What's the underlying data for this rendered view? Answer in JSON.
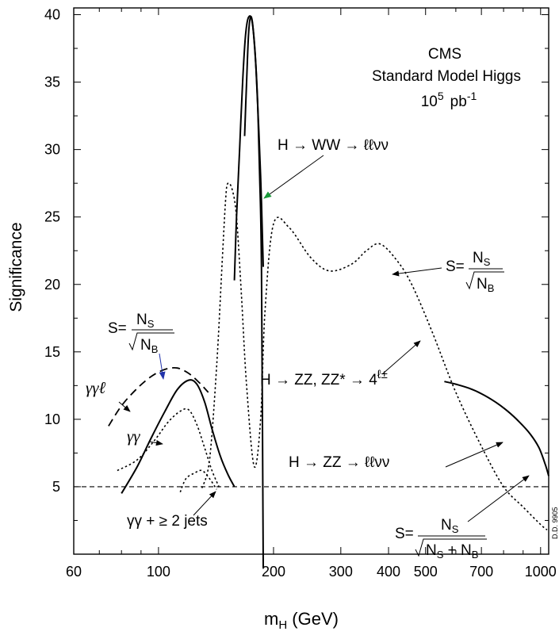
{
  "chart_data": {
    "type": "line",
    "xlabel": {
      "main": "m",
      "sub": "H",
      "rest": " (GeV)"
    },
    "ylabel": "Significance",
    "x_scale": "log",
    "xlim": [
      60,
      1050
    ],
    "ylim": [
      0,
      40.5
    ],
    "x_ticks": [
      60,
      100,
      200,
      300,
      400,
      500,
      700,
      1000
    ],
    "y_ticks": [
      5,
      10,
      15,
      20,
      25,
      30,
      35,
      40
    ],
    "title_lines": [
      "CMS",
      "Standard Model Higgs"
    ],
    "lumi": {
      "base": "10",
      "exp": "5",
      "unit": "pb",
      "unit_exp": "-1"
    },
    "threshold": 5,
    "side_tag": "D.D. 9905",
    "annotations": {
      "ww": "H →  WW →  ℓℓνν",
      "zz4l": {
        "pre": "H  →  ZZ, ZZ* →  4",
        "sup": "ℓ±"
      },
      "zzllvv": "H →  ZZ →  ℓℓνν",
      "gg_jets": "γγ + ≥ 2 jets",
      "ggl": "γγℓ",
      "gg": "γγ",
      "formula_s": "S=",
      "formula_ns": "N",
      "formula_ns_sub": "S",
      "formula_nb": "N",
      "formula_nb_sub": "B",
      "formula_plus": " + N"
    },
    "series": [
      {
        "style": "solid",
        "x": [
          168,
          170,
          172,
          174,
          176,
          178,
          180,
          182,
          184,
          186,
          188
        ],
        "y": [
          31,
          35,
          38.5,
          39.8,
          39.5,
          38,
          36,
          33,
          28,
          21,
          -1
        ]
      },
      {
        "style": "solid",
        "x": [
          158,
          160,
          163,
          166,
          169,
          172,
          176,
          180,
          185,
          188
        ],
        "y": [
          20.3,
          25,
          30,
          35,
          38.5,
          39.8,
          39.4,
          36,
          28,
          21.3
        ]
      },
      {
        "style": "solid",
        "x": [
          80,
          88,
          96,
          104,
          112,
          120,
          126,
          132,
          138,
          145,
          152,
          158
        ],
        "y": [
          4.5,
          6.5,
          8.7,
          10.6,
          12.2,
          12.9,
          12.6,
          11.3,
          9.3,
          7.3,
          5.9,
          5.0
        ]
      },
      {
        "style": "solid",
        "x": [
          560,
          600,
          650,
          700,
          760,
          820,
          880,
          940,
          990,
          1030,
          1050
        ],
        "y": [
          12.8,
          12.6,
          12.3,
          11.9,
          11.3,
          10.6,
          9.8,
          8.9,
          7.9,
          6.6,
          5.8
        ]
      },
      {
        "style": "dashed",
        "x": [
          74,
          80,
          88,
          96,
          104,
          112,
          120,
          128,
          135
        ],
        "y": [
          9.5,
          11.0,
          12.3,
          13.2,
          13.7,
          13.8,
          13.4,
          12.7,
          12.0
        ]
      },
      {
        "style": "dotted",
        "x": [
          78,
          88,
          98,
          106,
          114,
          120,
          126,
          132,
          138,
          145
        ],
        "y": [
          6.2,
          7.0,
          8.5,
          9.8,
          10.6,
          10.7,
          9.6,
          7.9,
          6.2,
          4.8
        ]
      },
      {
        "style": "dotted",
        "x": [
          114,
          118,
          124,
          130,
          136,
          142
        ],
        "y": [
          4.6,
          5.6,
          6.0,
          6.2,
          5.6,
          4.8
        ]
      },
      {
        "style": "dotted",
        "x": [
          130,
          136,
          142,
          147,
          150,
          152,
          156,
          160,
          165,
          170,
          178,
          185,
          190,
          200,
          220,
          250,
          280,
          320,
          350,
          380,
          420,
          460,
          520,
          600,
          700,
          800,
          900,
          1000,
          1040
        ],
        "y": [
          4.9,
          7,
          14,
          22,
          26.5,
          27.5,
          27,
          25,
          19,
          12.5,
          6.5,
          10,
          18,
          24.5,
          24.2,
          22,
          21,
          21.5,
          22.5,
          23,
          21.8,
          20,
          16.5,
          12,
          8,
          5,
          3.5,
          2.2,
          1.8
        ]
      }
    ]
  }
}
